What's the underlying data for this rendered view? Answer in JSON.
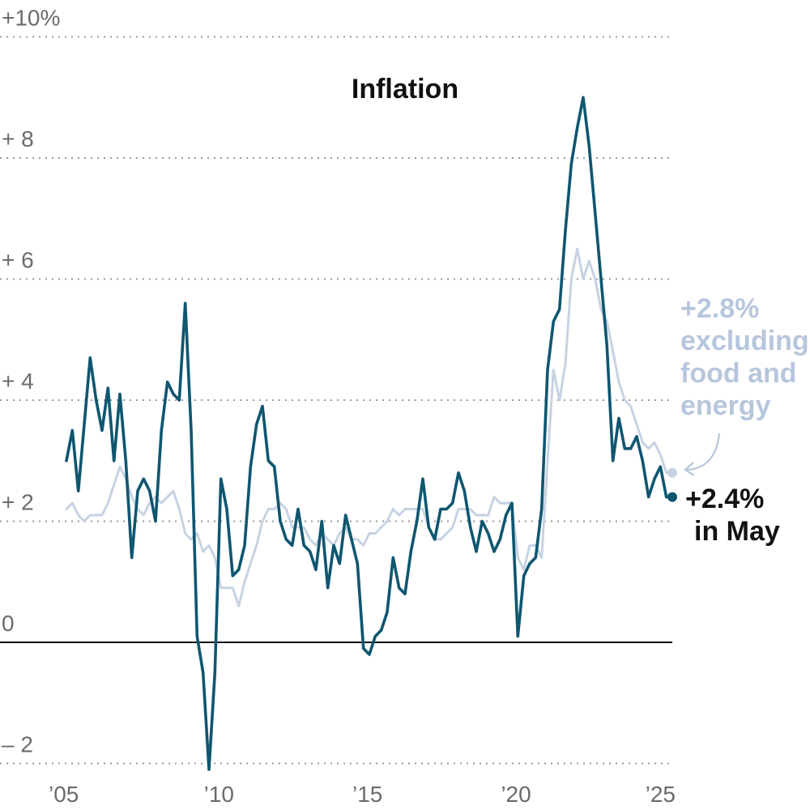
{
  "chart_data": {
    "type": "line",
    "title": "Inflation",
    "xlabel": "",
    "ylabel": "",
    "x_range": [
      2005.0,
      2025.4
    ],
    "ylim": [
      -2,
      10
    ],
    "y_ticks": [
      {
        "value": 10,
        "label": "+10%"
      },
      {
        "value": 8,
        "label": "+  8"
      },
      {
        "value": 6,
        "label": "+  6"
      },
      {
        "value": 4,
        "label": "+  4"
      },
      {
        "value": 2,
        "label": "+  2"
      },
      {
        "value": 0,
        "label": "0"
      },
      {
        "value": -2,
        "label": "–  2"
      }
    ],
    "x_ticks": [
      {
        "value": 2005,
        "label": "’05"
      },
      {
        "value": 2010,
        "label": "’10"
      },
      {
        "value": 2015,
        "label": "’15"
      },
      {
        "value": 2020,
        "label": "’20"
      },
      {
        "value": 2025,
        "label": "’25"
      }
    ],
    "grid": true,
    "colors": {
      "headline": "#0f5670",
      "core": "#c7d3e3",
      "zero_line": "#111111"
    },
    "series": [
      {
        "key": "core",
        "points": [
          [
            2005.0,
            2.2
          ],
          [
            2005.2,
            2.3
          ],
          [
            2005.4,
            2.1
          ],
          [
            2005.6,
            2.0
          ],
          [
            2005.8,
            2.1
          ],
          [
            2006.0,
            2.1
          ],
          [
            2006.2,
            2.1
          ],
          [
            2006.4,
            2.3
          ],
          [
            2006.6,
            2.6
          ],
          [
            2006.8,
            2.9
          ],
          [
            2007.0,
            2.7
          ],
          [
            2007.2,
            2.4
          ],
          [
            2007.4,
            2.2
          ],
          [
            2007.6,
            2.1
          ],
          [
            2007.8,
            2.3
          ],
          [
            2008.0,
            2.4
          ],
          [
            2008.2,
            2.3
          ],
          [
            2008.4,
            2.4
          ],
          [
            2008.6,
            2.5
          ],
          [
            2008.8,
            2.2
          ],
          [
            2009.0,
            1.8
          ],
          [
            2009.2,
            1.7
          ],
          [
            2009.4,
            1.8
          ],
          [
            2009.6,
            1.5
          ],
          [
            2009.8,
            1.6
          ],
          [
            2010.0,
            1.4
          ],
          [
            2010.2,
            0.9
          ],
          [
            2010.4,
            0.9
          ],
          [
            2010.6,
            0.9
          ],
          [
            2010.8,
            0.6
          ],
          [
            2011.0,
            1.0
          ],
          [
            2011.2,
            1.3
          ],
          [
            2011.4,
            1.6
          ],
          [
            2011.6,
            2.0
          ],
          [
            2011.8,
            2.2
          ],
          [
            2012.0,
            2.2
          ],
          [
            2012.2,
            2.3
          ],
          [
            2012.4,
            2.2
          ],
          [
            2012.6,
            1.9
          ],
          [
            2012.8,
            1.9
          ],
          [
            2013.0,
            1.9
          ],
          [
            2013.2,
            1.7
          ],
          [
            2013.4,
            1.6
          ],
          [
            2013.6,
            1.8
          ],
          [
            2013.8,
            1.7
          ],
          [
            2014.0,
            1.6
          ],
          [
            2014.2,
            1.8
          ],
          [
            2014.4,
            1.9
          ],
          [
            2014.6,
            1.7
          ],
          [
            2014.8,
            1.7
          ],
          [
            2015.0,
            1.6
          ],
          [
            2015.2,
            1.8
          ],
          [
            2015.4,
            1.8
          ],
          [
            2015.6,
            1.9
          ],
          [
            2015.8,
            2.0
          ],
          [
            2016.0,
            2.2
          ],
          [
            2016.2,
            2.1
          ],
          [
            2016.4,
            2.2
          ],
          [
            2016.6,
            2.2
          ],
          [
            2016.8,
            2.2
          ],
          [
            2017.0,
            2.2
          ],
          [
            2017.2,
            1.9
          ],
          [
            2017.4,
            1.7
          ],
          [
            2017.6,
            1.7
          ],
          [
            2017.8,
            1.8
          ],
          [
            2018.0,
            1.9
          ],
          [
            2018.2,
            2.2
          ],
          [
            2018.4,
            2.2
          ],
          [
            2018.6,
            2.2
          ],
          [
            2018.8,
            2.1
          ],
          [
            2019.0,
            2.1
          ],
          [
            2019.2,
            2.1
          ],
          [
            2019.4,
            2.4
          ],
          [
            2019.6,
            2.3
          ],
          [
            2019.8,
            2.3
          ],
          [
            2020.0,
            2.3
          ],
          [
            2020.2,
            1.4
          ],
          [
            2020.4,
            1.2
          ],
          [
            2020.6,
            1.6
          ],
          [
            2020.8,
            1.6
          ],
          [
            2021.0,
            1.4
          ],
          [
            2021.2,
            3.0
          ],
          [
            2021.4,
            4.5
          ],
          [
            2021.6,
            4.0
          ],
          [
            2021.8,
            4.6
          ],
          [
            2022.0,
            6.0
          ],
          [
            2022.2,
            6.5
          ],
          [
            2022.4,
            6.0
          ],
          [
            2022.6,
            6.3
          ],
          [
            2022.8,
            6.0
          ],
          [
            2023.0,
            5.5
          ],
          [
            2023.2,
            5.3
          ],
          [
            2023.4,
            4.8
          ],
          [
            2023.6,
            4.3
          ],
          [
            2023.8,
            4.0
          ],
          [
            2024.0,
            3.9
          ],
          [
            2024.2,
            3.6
          ],
          [
            2024.4,
            3.3
          ],
          [
            2024.6,
            3.2
          ],
          [
            2024.8,
            3.3
          ],
          [
            2025.0,
            3.1
          ],
          [
            2025.2,
            2.8
          ],
          [
            2025.4,
            2.8
          ]
        ]
      },
      {
        "key": "headline",
        "points": [
          [
            2005.0,
            3.0
          ],
          [
            2005.2,
            3.5
          ],
          [
            2005.4,
            2.5
          ],
          [
            2005.6,
            3.6
          ],
          [
            2005.8,
            4.7
          ],
          [
            2006.0,
            4.0
          ],
          [
            2006.2,
            3.5
          ],
          [
            2006.4,
            4.2
          ],
          [
            2006.6,
            3.0
          ],
          [
            2006.8,
            4.1
          ],
          [
            2007.0,
            3.0
          ],
          [
            2007.2,
            1.4
          ],
          [
            2007.4,
            2.5
          ],
          [
            2007.6,
            2.7
          ],
          [
            2007.8,
            2.5
          ],
          [
            2008.0,
            2.0
          ],
          [
            2008.2,
            3.5
          ],
          [
            2008.4,
            4.3
          ],
          [
            2008.6,
            4.1
          ],
          [
            2008.8,
            4.0
          ],
          [
            2009.0,
            5.6
          ],
          [
            2009.2,
            3.5
          ],
          [
            2009.4,
            0.1
          ],
          [
            2009.6,
            -0.5
          ],
          [
            2009.8,
            -2.1
          ],
          [
            2010.0,
            -0.5
          ],
          [
            2010.2,
            2.7
          ],
          [
            2010.4,
            2.2
          ],
          [
            2010.6,
            1.1
          ],
          [
            2010.8,
            1.2
          ],
          [
            2011.0,
            1.6
          ],
          [
            2011.2,
            2.9
          ],
          [
            2011.4,
            3.6
          ],
          [
            2011.6,
            3.9
          ],
          [
            2011.8,
            3.0
          ],
          [
            2012.0,
            2.9
          ],
          [
            2012.2,
            2.0
          ],
          [
            2012.4,
            1.7
          ],
          [
            2012.6,
            1.6
          ],
          [
            2012.8,
            2.2
          ],
          [
            2013.0,
            1.6
          ],
          [
            2013.2,
            1.5
          ],
          [
            2013.4,
            1.2
          ],
          [
            2013.6,
            2.0
          ],
          [
            2013.8,
            0.9
          ],
          [
            2014.0,
            1.6
          ],
          [
            2014.2,
            1.3
          ],
          [
            2014.4,
            2.1
          ],
          [
            2014.6,
            1.7
          ],
          [
            2014.8,
            1.3
          ],
          [
            2015.0,
            -0.1
          ],
          [
            2015.2,
            -0.2
          ],
          [
            2015.4,
            0.1
          ],
          [
            2015.6,
            0.2
          ],
          [
            2015.8,
            0.5
          ],
          [
            2016.0,
            1.4
          ],
          [
            2016.2,
            0.9
          ],
          [
            2016.4,
            0.8
          ],
          [
            2016.6,
            1.5
          ],
          [
            2016.8,
            2.0
          ],
          [
            2017.0,
            2.7
          ],
          [
            2017.2,
            1.9
          ],
          [
            2017.4,
            1.7
          ],
          [
            2017.6,
            2.2
          ],
          [
            2017.8,
            2.2
          ],
          [
            2018.0,
            2.3
          ],
          [
            2018.2,
            2.8
          ],
          [
            2018.4,
            2.5
          ],
          [
            2018.6,
            1.9
          ],
          [
            2018.8,
            1.5
          ],
          [
            2019.0,
            2.0
          ],
          [
            2019.2,
            1.8
          ],
          [
            2019.4,
            1.5
          ],
          [
            2019.6,
            1.7
          ],
          [
            2019.8,
            2.1
          ],
          [
            2020.0,
            2.3
          ],
          [
            2020.2,
            0.1
          ],
          [
            2020.4,
            1.1
          ],
          [
            2020.6,
            1.3
          ],
          [
            2020.8,
            1.4
          ],
          [
            2021.0,
            2.2
          ],
          [
            2021.2,
            4.5
          ],
          [
            2021.4,
            5.3
          ],
          [
            2021.6,
            5.5
          ],
          [
            2021.8,
            6.8
          ],
          [
            2022.0,
            7.9
          ],
          [
            2022.2,
            8.5
          ],
          [
            2022.4,
            9.0
          ],
          [
            2022.6,
            8.2
          ],
          [
            2022.8,
            7.1
          ],
          [
            2023.0,
            6.0
          ],
          [
            2023.2,
            4.9
          ],
          [
            2023.4,
            3.0
          ],
          [
            2023.6,
            3.7
          ],
          [
            2023.8,
            3.2
          ],
          [
            2024.0,
            3.2
          ],
          [
            2024.2,
            3.4
          ],
          [
            2024.4,
            3.0
          ],
          [
            2024.6,
            2.4
          ],
          [
            2024.8,
            2.7
          ],
          [
            2025.0,
            2.9
          ],
          [
            2025.2,
            2.4
          ],
          [
            2025.4,
            2.4
          ]
        ]
      }
    ],
    "annotations": {
      "core_lines": [
        "+2.8%",
        "excluding",
        "food and",
        "energy"
      ],
      "headline_lines": [
        "+2.4%",
        "in May"
      ]
    }
  }
}
